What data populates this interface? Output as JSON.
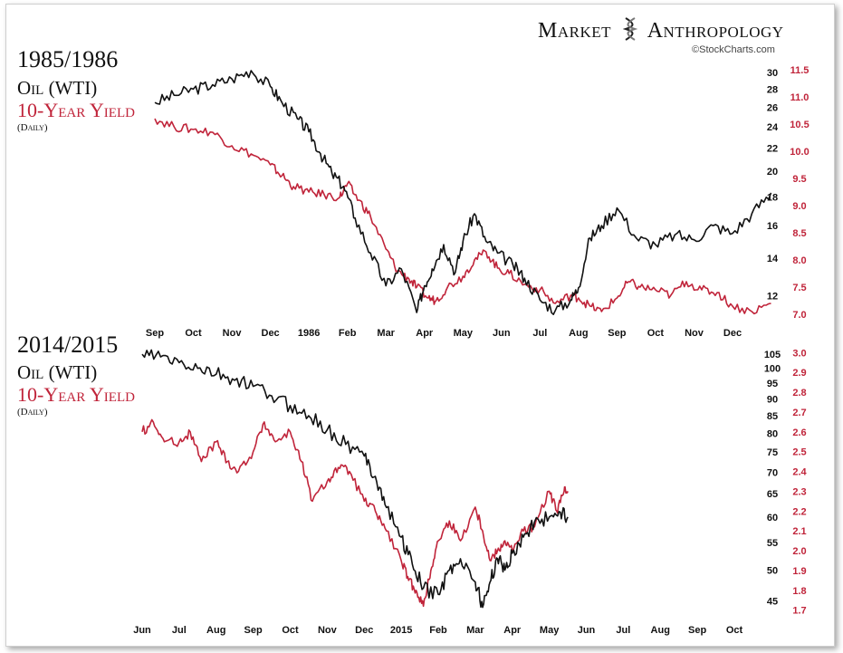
{
  "brand": {
    "title_left": "Market",
    "title_right": "Anthropology",
    "credit": "©StockCharts.com"
  },
  "colors": {
    "oil": "#111111",
    "yield": "#c0243a"
  },
  "chart_data": [
    {
      "type": "line",
      "title": "1985/1986",
      "series_label_1": "Oil (WTI)",
      "series_label_2": "10-Year Yield",
      "note": "(Daily)",
      "x_ticks": [
        "Sep",
        "Oct",
        "Nov",
        "Dec",
        "1986",
        "Feb",
        "Mar",
        "Apr",
        "May",
        "Jun",
        "Jul",
        "Aug",
        "Sep",
        "Oct",
        "Nov",
        "Dec"
      ],
      "y_left_ticks": [
        30,
        28,
        26,
        24,
        22,
        20,
        18,
        16,
        14,
        12
      ],
      "y_right_ticks": [
        "11.5",
        "11.0",
        "10.5",
        "10.0",
        "9.5",
        "9.0",
        "8.5",
        "8.0",
        "7.5",
        "7.0"
      ],
      "y_left_scale": "log",
      "ylim_left": [
        11,
        31
      ],
      "ylim_right": [
        6.95,
        11.6
      ],
      "series": [
        {
          "name": "Oil (WTI)",
          "axis": "left",
          "x_index": [
            0,
            0.5,
            1,
            1.5,
            2,
            2.5,
            3,
            3.3,
            3.7,
            4,
            4.3,
            4.6,
            4.9,
            5.2,
            5.6,
            6,
            6.4,
            6.8,
            7,
            7.2,
            7.5,
            7.8,
            8,
            8.3,
            8.6,
            8.9,
            9.3,
            9.6,
            10,
            10.4,
            10.8,
            11,
            11.3,
            11.6,
            12,
            12.5,
            13,
            13.5,
            14,
            14.5,
            15,
            15.5,
            16
          ],
          "values": [
            26.5,
            27.3,
            28,
            28.5,
            29.2,
            30.2,
            28.3,
            26.5,
            24.8,
            23.5,
            21.5,
            19.8,
            18.8,
            16.5,
            14.3,
            12.5,
            13.4,
            11.2,
            12.5,
            13.4,
            14.8,
            13.2,
            15.0,
            16.8,
            15.0,
            14.3,
            13.6,
            12.9,
            11.8,
            11.3,
            11.8,
            12.4,
            15.2,
            16.0,
            17.2,
            15.2,
            14.8,
            15.4,
            15.1,
            16.0,
            15.5,
            16.8,
            18.3
          ]
        },
        {
          "name": "10-Year Yield",
          "axis": "right",
          "x_index": [
            0,
            0.5,
            1,
            1.5,
            2,
            2.5,
            3,
            3.3,
            3.6,
            4,
            4.4,
            4.8,
            5,
            5.3,
            5.6,
            6,
            6.3,
            6.6,
            6.8,
            7.1,
            7.3,
            7.6,
            8,
            8.3,
            8.6,
            8.9,
            9.2,
            9.6,
            10,
            10.4,
            10.8,
            11,
            11.3,
            11.6,
            12,
            12.3,
            12.6,
            13,
            13.4,
            13.8,
            14.2,
            14.6,
            15,
            15.5,
            16
          ],
          "values": [
            10.6,
            10.45,
            10.4,
            10.35,
            10.1,
            9.95,
            9.75,
            9.55,
            9.35,
            9.25,
            9.2,
            9.15,
            9.4,
            9.1,
            8.8,
            8.2,
            7.8,
            7.65,
            7.5,
            7.3,
            7.25,
            7.5,
            7.7,
            8.0,
            8.15,
            7.85,
            7.75,
            7.55,
            7.45,
            7.2,
            7.35,
            7.3,
            7.15,
            7.05,
            7.3,
            7.6,
            7.5,
            7.45,
            7.35,
            7.6,
            7.45,
            7.4,
            7.15,
            7.05,
            7.2
          ]
        }
      ]
    },
    {
      "type": "line",
      "title": "2014/2015",
      "series_label_1": "Oil (WTI)",
      "series_label_2": "10-Year Yield",
      "note": "(Daily)",
      "x_ticks": [
        "Jun",
        "Jul",
        "Aug",
        "Sep",
        "Oct",
        "Nov",
        "Dec",
        "2015",
        "Feb",
        "Mar",
        "Apr",
        "May",
        "Jun",
        "Jul",
        "Aug",
        "Sep",
        "Oct"
      ],
      "y_left_ticks": [
        105,
        100,
        95,
        90,
        85,
        80,
        75,
        70,
        65,
        60,
        55,
        50,
        45
      ],
      "y_right_ticks": [
        "3.0",
        "2.9",
        "2.8",
        "2.7",
        "2.6",
        "2.5",
        "2.4",
        "2.3",
        "2.2",
        "2.1",
        "2.0",
        "1.9",
        "1.8",
        "1.7"
      ],
      "y_left_scale": "log",
      "ylim_left": [
        43,
        107
      ],
      "ylim_right": [
        1.68,
        3.02
      ],
      "series": [
        {
          "name": "Oil (WTI)",
          "axis": "left",
          "x_index": [
            0,
            0.5,
            1,
            1.5,
            2,
            2.5,
            3,
            3.5,
            4,
            4.5,
            5,
            5.5,
            6,
            6.3,
            6.6,
            7,
            7.3,
            7.6,
            8,
            8.3,
            8.6,
            9,
            9.2,
            9.4,
            9.6,
            9.8,
            10,
            10.3,
            10.6,
            11,
            11.3,
            11.5
          ],
          "values": [
            105,
            104,
            102,
            100,
            98,
            96,
            94,
            91,
            88,
            85,
            81,
            77,
            74,
            69,
            62,
            56,
            51,
            47,
            46,
            50,
            52,
            48,
            44,
            48,
            52,
            50,
            53,
            56,
            59,
            60,
            61,
            60
          ]
        },
        {
          "name": "10-Year Yield",
          "axis": "right",
          "x_index": [
            0,
            0.3,
            0.6,
            1,
            1.3,
            1.6,
            2,
            2.3,
            2.6,
            3,
            3.3,
            3.6,
            4,
            4.3,
            4.6,
            5,
            5.3,
            5.6,
            6,
            6.3,
            6.6,
            7,
            7.2,
            7.4,
            7.6,
            7.8,
            8,
            8.3,
            8.6,
            9,
            9.2,
            9.4,
            9.6,
            9.8,
            10,
            10.3,
            10.6,
            11,
            11.2,
            11.4,
            11.5
          ],
          "values": [
            2.6,
            2.65,
            2.55,
            2.55,
            2.6,
            2.45,
            2.55,
            2.45,
            2.4,
            2.5,
            2.65,
            2.55,
            2.6,
            2.45,
            2.25,
            2.35,
            2.42,
            2.4,
            2.25,
            2.2,
            2.1,
            1.95,
            1.85,
            1.8,
            1.72,
            1.9,
            2.05,
            2.15,
            2.05,
            2.22,
            2.1,
            1.95,
            2.0,
            2.05,
            2.0,
            2.1,
            2.12,
            2.3,
            2.2,
            2.3,
            2.3
          ]
        }
      ]
    }
  ]
}
